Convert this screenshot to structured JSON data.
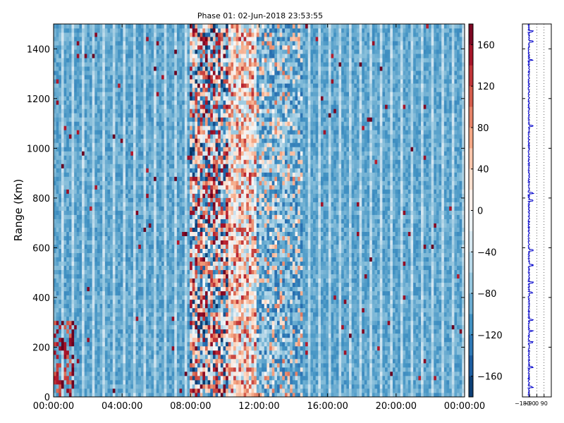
{
  "chart_data": [
    {
      "type": "heatmap",
      "title": "Phase 01: 02-Jun-2018 23:53:55",
      "xlabel": "",
      "ylabel": "Range (Km)",
      "x_tick_labels": [
        "00:00:00",
        "04:00:00",
        "08:00:00",
        "12:00:00",
        "16:00:00",
        "20:00:00",
        "00:00:00"
      ],
      "x_tick_hours": [
        0,
        4,
        8,
        12,
        16,
        20,
        24
      ],
      "xlim_hours": [
        0,
        24
      ],
      "y_ticks": [
        0,
        200,
        400,
        600,
        800,
        1000,
        1200,
        1400
      ],
      "ylim": [
        0,
        1500
      ],
      "colormap": "RdBu_r",
      "colorbar": {
        "ticks": [
          160,
          120,
          80,
          40,
          0,
          -40,
          -80,
          -120,
          -160
        ],
        "tick_labels": [
          "160",
          "120",
          "80",
          "40",
          "0",
          "−40",
          "−80",
          "−120",
          "−160"
        ],
        "range": [
          -180,
          180
        ]
      },
      "background_phase": -95,
      "noisy_band_hours": [
        8,
        14.5
      ],
      "noisy_band_core_hours": [
        10.2,
        11.8
      ]
    },
    {
      "type": "line",
      "xlim": [
        -180,
        180
      ],
      "x_tick_labels": [
        "−180",
        "−90",
        "0",
        "90"
      ],
      "ylim": [
        0,
        1500
      ],
      "color": "#0000cc",
      "baseline_phase": -100,
      "spikes_at_range": [
        40,
        120,
        220,
        265,
        310,
        420,
        460,
        530,
        590,
        790,
        820,
        1090,
        1355,
        1430,
        1470
      ]
    }
  ]
}
